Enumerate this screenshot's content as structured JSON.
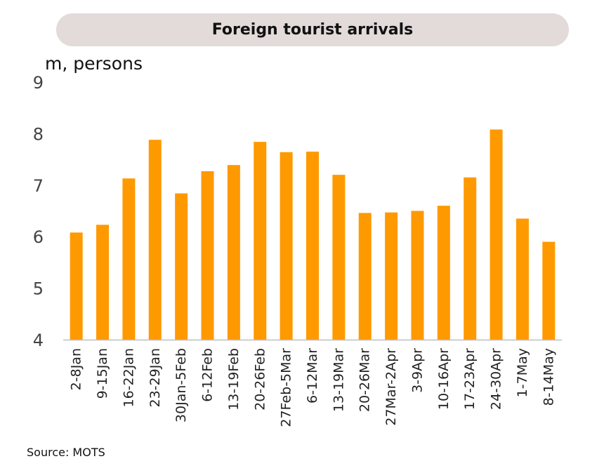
{
  "title": "Foreign tourist arrivals",
  "unit_label": "m, persons",
  "source": "Source: MOTS",
  "colors": {
    "bar": "#FF9900",
    "title_bg": "#E3DADA",
    "axis": "#BFBFBF"
  },
  "chart_data": {
    "type": "bar",
    "title": "Foreign tourist arrivals",
    "ylabel": "m, persons",
    "xlabel": "",
    "ylim": [
      4,
      9
    ],
    "yticks": [
      4,
      5,
      6,
      7,
      8,
      9
    ],
    "grid": false,
    "legend": "none",
    "categories": [
      "2-8Jan",
      "9-15Jan",
      "16-22Jan",
      "23-29Jan",
      "30Jan-5Feb",
      "6-12Feb",
      "13-19Feb",
      "20-26Feb",
      "27Feb-5Mar",
      "6-12Mar",
      "13-19Mar",
      "20-26Mar",
      "27Mar-2Apr",
      "3-9Apr",
      "10-16Apr",
      "17-23Apr",
      "24-30Apr",
      "1-7May",
      "8-14May"
    ],
    "values": [
      6.08,
      6.23,
      7.13,
      7.88,
      6.84,
      7.27,
      7.39,
      7.84,
      7.64,
      7.65,
      7.2,
      6.46,
      6.47,
      6.5,
      6.6,
      7.15,
      8.08,
      6.35,
      5.9
    ]
  }
}
